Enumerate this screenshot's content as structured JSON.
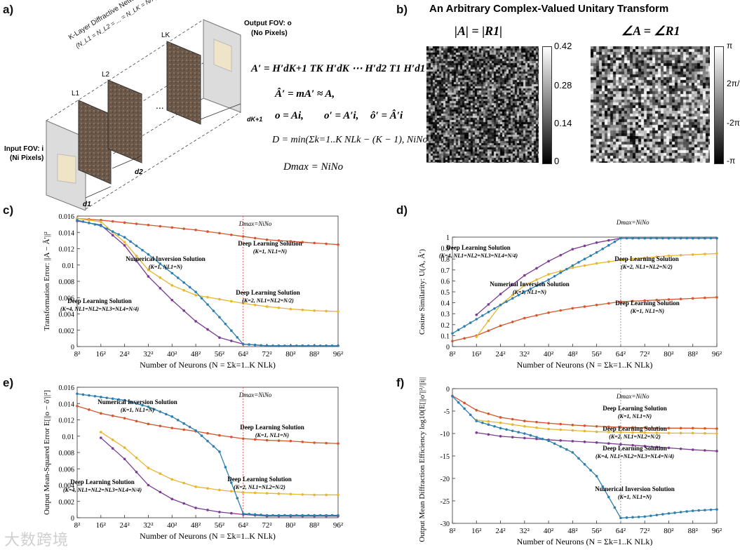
{
  "panel_a": {
    "label": "a)",
    "network_title": "K-Layer Diffractive Network",
    "network_eq": "(N_L1 = N_L2 = ... = N_LK = N/K)",
    "layers": [
      "L1",
      "L2",
      "LK"
    ],
    "dots": "...",
    "distances": [
      "d1",
      "d2",
      "dK+1"
    ],
    "input_fov": "Input FOV: i",
    "input_pixels": "(Ni Pixels)",
    "output_fov": "Output FOV: o",
    "output_pixels": "(No Pixels)",
    "eq1": "A′ = H′dK+1 TK H′dK ⋯ H′d2 T1 H′d1",
    "eq2": "Â′ = mA′ ≈ A,",
    "eq3a": "o = Ai,",
    "eq3b": "o′ = A′i,",
    "eq3c": "ô′ = Â′i",
    "eq4": "D = min(Σk=1..K NLk − (K − 1), NiNo)",
    "eq5": "Dmax = NiNo"
  },
  "panel_b": {
    "label": "b)",
    "title": "An Arbitrary Complex-Valued Unitary Transform",
    "mag_title": "|A| = |R1|",
    "phase_title": "∠A = ∠R1",
    "mag_ticks": [
      "0.42",
      "0.28",
      "0.14",
      "0"
    ],
    "phase_ticks": [
      "π",
      "2π/3",
      "-2π/3",
      "-π"
    ]
  },
  "colors": {
    "orange": "#d6552c",
    "yellow": "#e8b52e",
    "purple": "#7a3b92",
    "blue": "#2c7fb0"
  },
  "x_ticks": [
    "8²",
    "16²",
    "24²",
    "32²",
    "40²",
    "48²",
    "56²",
    "64²",
    "72²",
    "80²",
    "88²",
    "96²"
  ],
  "xlabel": "Number of Neurons (N = Σk=1..K NLk)",
  "dmax_label": "Dmax=NiNo",
  "charts": [
    {
      "label": "c)",
      "type": "line",
      "ylabel": "Transformation Error: ||A − Â′||²",
      "y_ticks": [
        "0.016",
        "0.014",
        "0.012",
        "0.01",
        "0.008",
        "0.006",
        "0.004",
        "0.002",
        "0"
      ],
      "ylim": [
        0,
        0.016
      ],
      "series": [
        {
          "name": "Deep Learning Solution (K=1, NL1=N)",
          "color": "orange",
          "values": [
            0.0157,
            0.0155,
            0.0152,
            0.0149,
            0.0146,
            0.0143,
            0.0139,
            0.0135,
            0.0131,
            0.0129,
            0.0127,
            0.0125
          ]
        },
        {
          "name": "Deep Learning Solution (K=2, NL1=NL2=N/2)",
          "color": "yellow",
          "values": [
            0.0157,
            0.0153,
            0.0128,
            0.0094,
            0.0075,
            0.0063,
            0.0058,
            0.0053,
            0.0049,
            0.0046,
            0.0044,
            0.0043
          ]
        },
        {
          "name": "Deep Learning Solution (K=4, NL1=NL2=NL3=NL4=N/4)",
          "color": "purple",
          "values": [
            0.0154,
            0.0149,
            0.0124,
            0.0086,
            0.0057,
            0.0031,
            0.0011,
            0.0003,
            0.0001,
            0.0001,
            0.0001,
            0.0001
          ]
        },
        {
          "name": "Numerical Inversion Solution (K=1, NL1=N)",
          "color": "blue",
          "values": [
            0.0155,
            0.0148,
            0.0134,
            0.0113,
            0.009,
            0.0067,
            0.0036,
            0.0003,
            0.0001,
            0.0001,
            0.0001,
            0.0001
          ]
        }
      ],
      "annotations": [
        {
          "t1": "Deep Learning Solution",
          "t2": "(K=1, NL1=N)"
        },
        {
          "t1": "Numerical Inversion Solution",
          "t2": "(K=1, NL1=N)"
        },
        {
          "t1": "Deep Learning Solution",
          "t2": "(K=2, NL1=NL2=N/2)"
        },
        {
          "t1": "Deep Learning Solution",
          "t2": "(K=4, NL1=NL2=NL3=NL4=N/4)"
        }
      ]
    },
    {
      "label": "d)",
      "type": "line",
      "ylabel": "Cosine Similarity: U(A, Â′)",
      "y_ticks": [
        "1",
        "0.9",
        "0.8",
        "0.7",
        "0.6",
        "0.5",
        "0.4",
        "0.3",
        "0.2",
        "0.1",
        "0"
      ],
      "ylim": [
        0,
        1
      ],
      "series": [
        {
          "name": "Deep Learning Solution (K=1, NL1=N)",
          "color": "orange",
          "values": [
            0.05,
            0.1,
            0.19,
            0.26,
            0.31,
            0.35,
            0.38,
            0.41,
            0.42,
            0.43,
            0.44,
            0.45
          ]
        },
        {
          "name": "Deep Learning Solution (K=2, NL1=NL2=N/2)",
          "color": "yellow",
          "values": [
            null,
            0.09,
            0.38,
            0.56,
            0.66,
            0.72,
            0.76,
            0.79,
            0.81,
            0.83,
            0.84,
            0.85
          ]
        },
        {
          "name": "Deep Learning Solution (K=4, NL1=NL2=NL3=NL4=N/4)",
          "color": "purple",
          "values": [
            null,
            0.29,
            0.48,
            0.65,
            0.78,
            0.89,
            0.95,
            0.99,
            0.99,
            0.99,
            0.99,
            0.99
          ]
        },
        {
          "name": "Numerical Inversion Solution (K=1, NL1=N)",
          "color": "blue",
          "values": [
            0.12,
            0.25,
            0.38,
            0.5,
            0.61,
            0.74,
            0.86,
            0.99,
            0.99,
            0.99,
            0.99,
            0.99
          ]
        }
      ],
      "annotations": [
        {
          "t1": "Deep Learning Solution",
          "t2": "(K=4, NL1=NL2=NL3=NL4=N/4)"
        },
        {
          "t1": "Deep Learning Solution",
          "t2": "(K=2, NL1=NL2=N/2)"
        },
        {
          "t1": "Numerical Inversion Solution",
          "t2": "(K=1, NL1=N)"
        },
        {
          "t1": "Deep Learning Solution",
          "t2": "(K=1, NL1=N)"
        }
      ]
    },
    {
      "label": "e)",
      "type": "line",
      "ylabel": "Output Mean-Squared Error E[||o − ô′||²]",
      "y_ticks": [
        "0.016",
        "0.014",
        "0.012",
        "0.01",
        "0.008",
        "0.006",
        "0.004",
        "0.002",
        "0"
      ],
      "ylim": [
        0,
        0.016
      ],
      "series": [
        {
          "name": "Deep Learning Solution (K=1, NL1=N)",
          "color": "orange",
          "values": [
            0.0137,
            0.0128,
            0.0122,
            0.0115,
            0.011,
            0.0106,
            0.0101,
            0.0097,
            0.0095,
            0.0094,
            0.0092,
            0.0091
          ]
        },
        {
          "name": "Deep Learning Solution (K=2, NL1=NL2=N/2)",
          "color": "yellow",
          "values": [
            null,
            0.0105,
            0.0086,
            0.0061,
            0.0047,
            0.0038,
            0.0034,
            0.0031,
            0.003,
            0.0029,
            0.0028,
            0.0028
          ]
        },
        {
          "name": "Deep Learning Solution (K=4, NL1=NL2=NL3=NL4=N/4)",
          "color": "purple",
          "values": [
            null,
            0.0098,
            0.0072,
            0.004,
            0.0023,
            0.0012,
            0.0007,
            0.0004,
            0.0002,
            0.0002,
            0.0002,
            0.0002
          ]
        },
        {
          "name": "Numerical Inversion Solution (K=1, NL1=N)",
          "color": "blue",
          "values": [
            0.0152,
            0.0148,
            0.0144,
            0.0136,
            0.0124,
            0.0107,
            0.0081,
            0.0005,
            0.0003,
            0.0003,
            0.0003,
            0.0003
          ]
        }
      ],
      "annotations": [
        {
          "t1": "Numerical Inversion Solution",
          "t2": "(K=1, NL1=N)"
        },
        {
          "t1": "Deep Learning Solution",
          "t2": "(K=1, NL1=N)"
        },
        {
          "t1": "Deep Learning Solution",
          "t2": "(K=2, NL1=NL2=N/2)"
        },
        {
          "t1": "Deep Learning Solution",
          "t2": "(K=4, NL1=NL2=NL3=NL4=N/4)"
        }
      ]
    },
    {
      "label": "f)",
      "type": "line",
      "ylabel": "Output Mean Diffraction Efficiency log10(E[||o′||²/||i||²])",
      "y_ticks": [
        "0",
        "-5",
        "-10",
        "-15",
        "-20",
        "-25",
        "-30"
      ],
      "ylim": [
        -30,
        0
      ],
      "series": [
        {
          "name": "Deep Learning Solution (K=1, NL1=N)",
          "color": "orange",
          "values": [
            -1.6,
            -4.8,
            -6.4,
            -7.2,
            -7.7,
            -8.1,
            -8.4,
            -8.6,
            -8.7,
            -8.8,
            -8.8,
            -8.9
          ]
        },
        {
          "name": "Deep Learning Solution (K=2, NL1=NL2=N/2)",
          "color": "yellow",
          "values": [
            null,
            -7.0,
            -7.6,
            -8.4,
            -9.0,
            -9.3,
            -9.6,
            -9.7,
            -9.8,
            -9.9,
            -9.9,
            -10.0
          ]
        },
        {
          "name": "Deep Learning Solution (K=4, NL1=NL2=NL3=NL4=N/4)",
          "color": "purple",
          "values": [
            null,
            -9.8,
            -10.6,
            -11.0,
            -11.4,
            -11.7,
            -12.0,
            -12.4,
            -12.8,
            -13.2,
            -13.6,
            -13.9
          ]
        },
        {
          "name": "Numerical Inversion Solution (K=1, NL1=N)",
          "color": "blue",
          "values": [
            -1.7,
            -7.2,
            -8.8,
            -10.0,
            -11.6,
            -14.2,
            -19.5,
            -28.8,
            -28.5,
            -27.8,
            -27.2,
            -26.9
          ]
        }
      ],
      "annotations": [
        {
          "t1": "Deep Learning Solution",
          "t2": "(K=1, NL1=N)"
        },
        {
          "t1": "Deep Learning Solution",
          "t2": "(K=2, NL1=NL2=N/2)"
        },
        {
          "t1": "Deep Learning Solution",
          "t2": "(K=4, NL1=NL2=NL3=NL4=N/4)"
        },
        {
          "t1": "Numerical Inversion Solution",
          "t2": "(K=1, NL1=N)"
        }
      ]
    }
  ],
  "watermark": "大数跨境"
}
